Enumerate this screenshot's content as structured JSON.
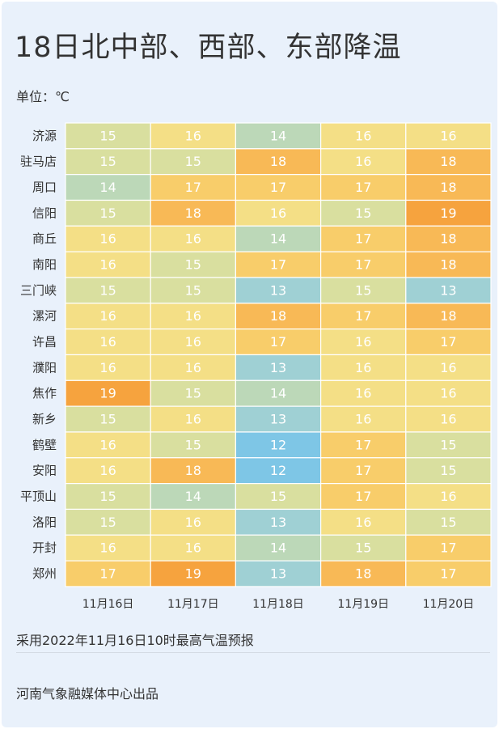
{
  "header": {
    "title": "18日北中部、西部、东部降温",
    "unit": "单位：℃"
  },
  "footer": {
    "source": "采用2022年11月16日10时最高气温预报",
    "publisher": "河南气象融媒体中心出品"
  },
  "chart_data": {
    "type": "heatmap",
    "x": [
      "11月16日",
      "11月17日",
      "11月18日",
      "11月19日",
      "11月20日"
    ],
    "y": [
      "济源",
      "驻马店",
      "周口",
      "信阳",
      "商丘",
      "南阳",
      "三门峡",
      "漯河",
      "许昌",
      "濮阳",
      "焦作",
      "新乡",
      "鹤壁",
      "安阳",
      "平顶山",
      "洛阳",
      "开封",
      "郑州"
    ],
    "values": [
      [
        15,
        16,
        14,
        16,
        16
      ],
      [
        15,
        15,
        18,
        16,
        18
      ],
      [
        14,
        17,
        17,
        17,
        18
      ],
      [
        15,
        18,
        16,
        15,
        19
      ],
      [
        16,
        16,
        14,
        17,
        18
      ],
      [
        16,
        15,
        17,
        17,
        18
      ],
      [
        15,
        15,
        13,
        15,
        13
      ],
      [
        16,
        16,
        18,
        17,
        18
      ],
      [
        16,
        16,
        17,
        16,
        17
      ],
      [
        16,
        16,
        13,
        16,
        16
      ],
      [
        19,
        15,
        14,
        16,
        16
      ],
      [
        15,
        16,
        13,
        16,
        16
      ],
      [
        16,
        15,
        12,
        17,
        15
      ],
      [
        16,
        18,
        12,
        17,
        15
      ],
      [
        15,
        14,
        15,
        17,
        16
      ],
      [
        15,
        16,
        13,
        16,
        15
      ],
      [
        16,
        16,
        14,
        15,
        17
      ],
      [
        17,
        19,
        13,
        18,
        17
      ]
    ],
    "colorscale": {
      "12": "#7ec6e6",
      "13": "#9fd0d4",
      "14": "#bcd8b8",
      "15": "#d9df9f",
      "16": "#f4df86",
      "17": "#f8cd6a",
      "18": "#f8b956",
      "19": "#f6a33e"
    }
  }
}
